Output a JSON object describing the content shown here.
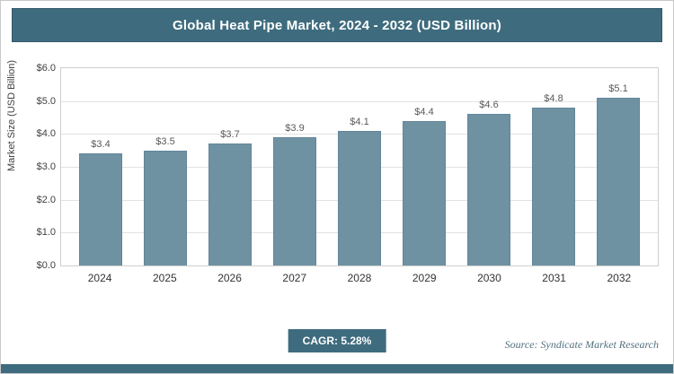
{
  "title": "Global Heat Pipe Market, 2024 - 2032 (USD Billion)",
  "chart_data": {
    "type": "bar",
    "title": "Global Heat Pipe Market, 2024 - 2032 (USD Billion)",
    "categories": [
      "2024",
      "2025",
      "2026",
      "2027",
      "2028",
      "2029",
      "2030",
      "2031",
      "2032"
    ],
    "values": [
      3.4,
      3.5,
      3.7,
      3.9,
      4.1,
      4.4,
      4.6,
      4.8,
      5.1
    ],
    "value_labels": [
      "$3.4",
      "$3.5",
      "$3.7",
      "$3.9",
      "$4.1",
      "$4.4",
      "$4.6",
      "$4.8",
      "$5.1"
    ],
    "xlabel": "",
    "ylabel": "Market Size (USD Billion)",
    "ylim": [
      0,
      6
    ],
    "ytick_values": [
      0,
      1,
      2,
      3,
      4,
      5,
      6
    ],
    "ytick_labels": [
      "$0.0",
      "$1.0",
      "$2.0",
      "$3.0",
      "$4.0",
      "$5.0",
      "$6.0"
    ],
    "grid": true,
    "legend": false,
    "bar_color": "#6e92a2"
  },
  "footer": {
    "cagr_label": "CAGR: 5.28%",
    "source": "Source: Syndicate Market Research"
  },
  "colors": {
    "accent": "#3e6c7e",
    "bar": "#6e92a2"
  }
}
